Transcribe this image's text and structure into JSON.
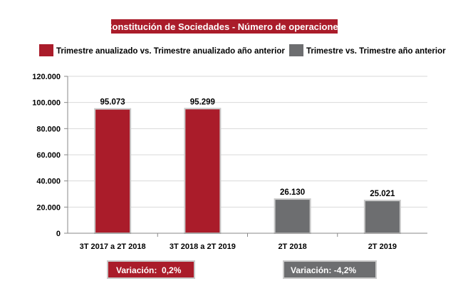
{
  "chart_data": {
    "type": "bar",
    "title": "Constitución de Sociedades - Número de operaciones",
    "categories": [
      "3T 2017 a 2T 2018",
      "3T 2018 a 2T 2019",
      "2T 2018",
      "2T 2019"
    ],
    "series": [
      {
        "name": "Trimestre anualizado vs. Trimestre anualizado año anterior",
        "color": "#aa1c2a",
        "values": [
          95073,
          95299,
          null,
          null
        ],
        "labels": [
          "95.073",
          "95.299",
          null,
          null
        ]
      },
      {
        "name": "Trimestre vs. Trimestre año anterior",
        "color": "#6d6e70",
        "values": [
          null,
          null,
          26130,
          25021
        ],
        "labels": [
          null,
          null,
          "26.130",
          "25.021"
        ]
      }
    ],
    "ylim": [
      0,
      120000
    ],
    "yticks": [
      0,
      20000,
      40000,
      60000,
      80000,
      100000,
      120000
    ],
    "ytick_labels": [
      "0",
      "20.000",
      "40.000",
      "60.000",
      "80.000",
      "100.000",
      "120.000"
    ],
    "xlabel": "",
    "ylabel": "",
    "grid": true,
    "legend_position": "top",
    "annotations": [
      {
        "text": "Variación:  0,2%",
        "color": "#aa1c2a"
      },
      {
        "text": "Variación: -4,2%",
        "color": "#6d6e70"
      }
    ]
  },
  "colors": {
    "title_bg": "#aa1c2a",
    "grid": "#d9d9d9",
    "axis": "#888888",
    "text": "#000000"
  }
}
